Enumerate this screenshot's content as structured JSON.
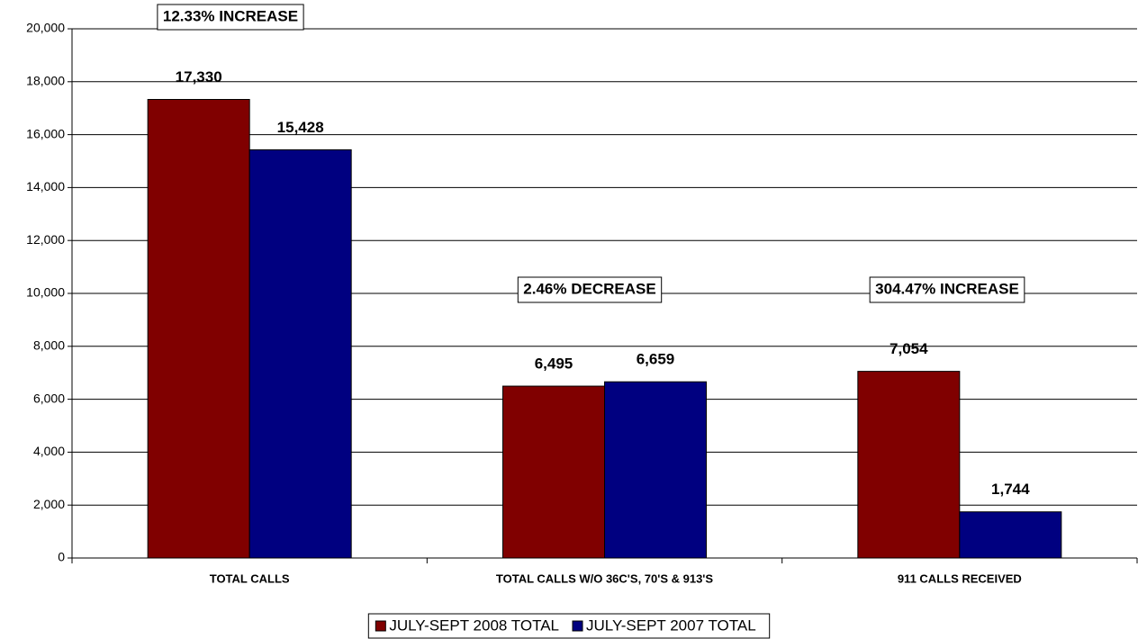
{
  "chart_data": {
    "type": "bar",
    "categories": [
      "TOTAL CALLS",
      "TOTAL CALLS W/O 36C'S, 70'S & 913'S",
      "911 CALLS RECEIVED"
    ],
    "series": [
      {
        "name": "JULY-SEPT 2008 TOTAL",
        "color": "#800000",
        "values": [
          17330,
          6495,
          7054
        ],
        "value_labels": [
          "17,330",
          "6,495",
          "7,054"
        ]
      },
      {
        "name": "JULY-SEPT 2007 TOTAL",
        "color": "#000080",
        "values": [
          15428,
          6659,
          1744
        ],
        "value_labels": [
          "15,428",
          "6,659",
          "1,744"
        ]
      }
    ],
    "annotations": [
      "12.33% INCREASE",
      "2.46% DECREASE",
      "304.47% INCREASE"
    ],
    "ylim": [
      0,
      20000
    ],
    "yticks": [
      0,
      {
        "value": 2000,
        "label": "2,000"
      },
      {
        "value": 4000,
        "label": "4,000"
      },
      {
        "value": 6000,
        "label": "6,000"
      },
      {
        "value": 8000,
        "label": "8,000"
      },
      {
        "value": 10000,
        "label": "10,000"
      },
      {
        "value": 12000,
        "label": "12,000"
      },
      {
        "value": 14000,
        "label": "14,000"
      },
      {
        "value": 16000,
        "label": "16,000"
      },
      {
        "value": 18000,
        "label": "18,000"
      },
      {
        "value": 20000,
        "label": "20,000"
      }
    ],
    "grid": true,
    "legend": "bottom"
  }
}
